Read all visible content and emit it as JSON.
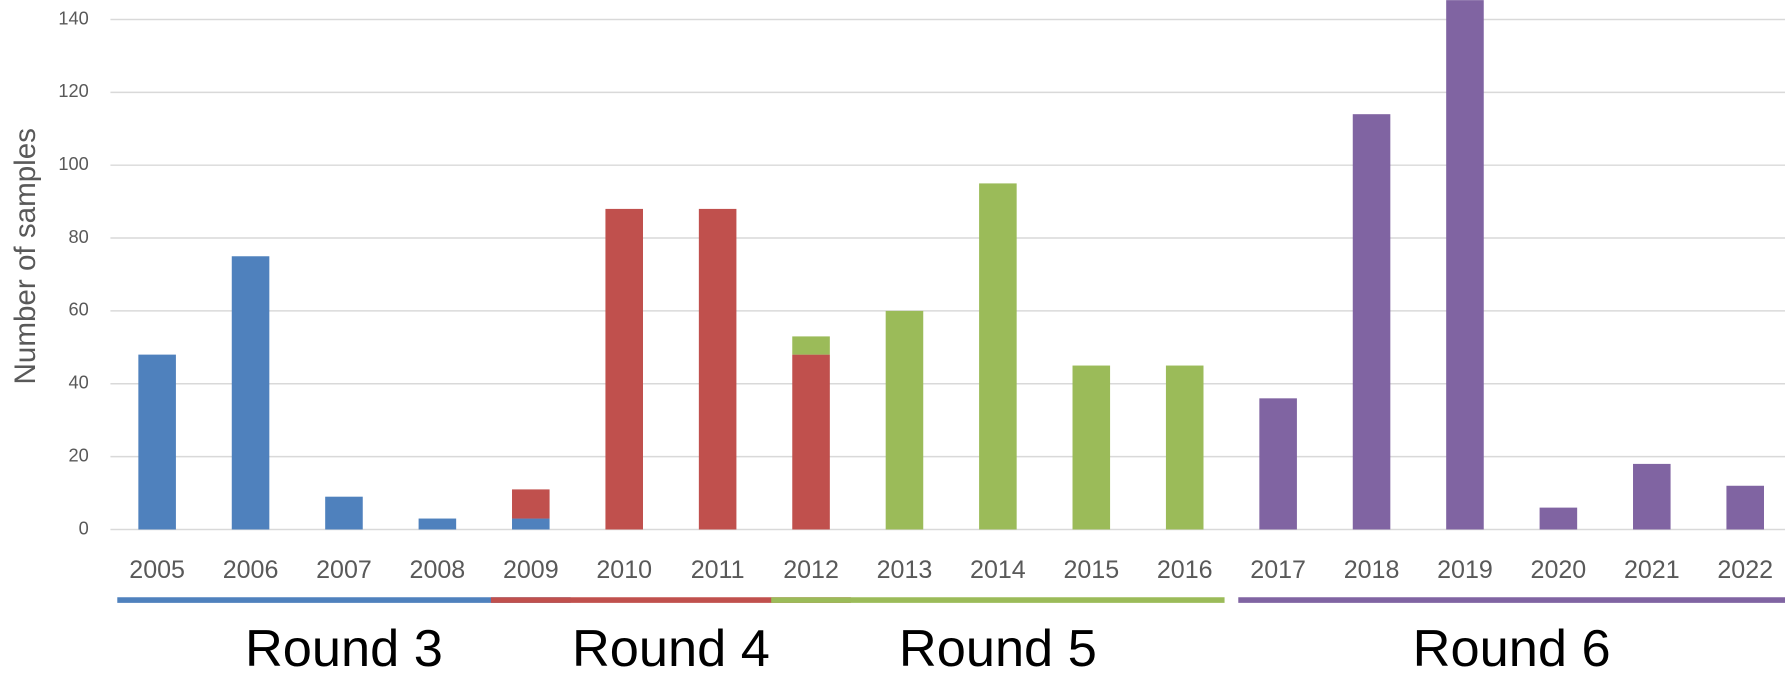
{
  "chart_data": {
    "type": "stacked_bar",
    "y_label": "Number of samples",
    "categories": [
      "2005",
      "2006",
      "2007",
      "2008",
      "2009",
      "2010",
      "2011",
      "2012",
      "2013",
      "2014",
      "2015",
      "2016",
      "2017",
      "2018",
      "2019",
      "2020",
      "2021",
      "2022"
    ],
    "series": [
      {
        "name": "Round 3",
        "color": "#4f81bd",
        "values": [
          48,
          75,
          9,
          3,
          3,
          null,
          null,
          null,
          null,
          null,
          null,
          null,
          null,
          null,
          null,
          null,
          null,
          null
        ]
      },
      {
        "name": "Round 4",
        "color": "#c0504d",
        "values": [
          null,
          null,
          null,
          null,
          8,
          88,
          88,
          48,
          null,
          null,
          null,
          null,
          null,
          null,
          null,
          null,
          null,
          null
        ]
      },
      {
        "name": "Round 5",
        "color": "#9bbb59",
        "values": [
          null,
          null,
          null,
          null,
          null,
          null,
          null,
          5,
          60,
          95,
          45,
          45,
          null,
          null,
          null,
          null,
          null,
          null
        ]
      },
      {
        "name": "Round 6",
        "color": "#8064a2",
        "values": [
          null,
          null,
          null,
          null,
          null,
          null,
          null,
          null,
          null,
          null,
          null,
          null,
          36,
          114,
          150,
          6,
          18,
          12
        ]
      }
    ],
    "ylim": [
      0,
      145
    ],
    "yticks": [
      0,
      20,
      40,
      60,
      80,
      100,
      120,
      140
    ],
    "grid": true
  }
}
